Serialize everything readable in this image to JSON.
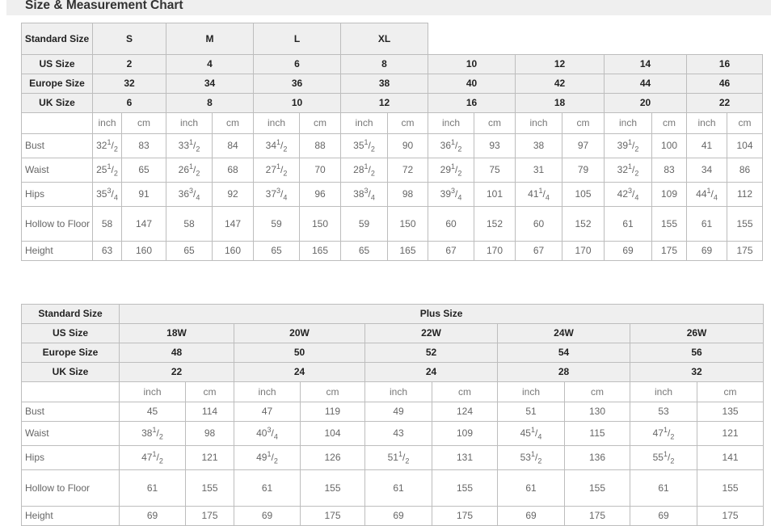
{
  "title": "Size & Measurement Chart",
  "table1": {
    "header_label": "Standard Size",
    "groups": [
      "S",
      "M",
      "L",
      "XL"
    ],
    "rows": [
      {
        "label": "US Size",
        "values": [
          "2",
          "4",
          "6",
          "8",
          "10",
          "12",
          "14",
          "16"
        ]
      },
      {
        "label": "Europe Size",
        "values": [
          "32",
          "34",
          "36",
          "38",
          "40",
          "42",
          "44",
          "46"
        ]
      },
      {
        "label": "UK Size",
        "values": [
          "6",
          "8",
          "10",
          "12",
          "16",
          "18",
          "20",
          "22"
        ]
      }
    ],
    "units": [
      "inch",
      "cm"
    ],
    "measures": [
      {
        "label": "Bust",
        "values": [
          {
            "w": "32",
            "n": "1",
            "d": "2"
          },
          "83",
          {
            "w": "33",
            "n": "1",
            "d": "2"
          },
          "84",
          {
            "w": "34",
            "n": "1",
            "d": "2"
          },
          "88",
          {
            "w": "35",
            "n": "1",
            "d": "2"
          },
          "90",
          {
            "w": "36",
            "n": "1",
            "d": "2"
          },
          "93",
          "38",
          "97",
          {
            "w": "39",
            "n": "1",
            "d": "2"
          },
          "100",
          "41",
          "104"
        ]
      },
      {
        "label": "Waist",
        "values": [
          {
            "w": "25",
            "n": "1",
            "d": "2"
          },
          "65",
          {
            "w": "26",
            "n": "1",
            "d": "2"
          },
          "68",
          {
            "w": "27",
            "n": "1",
            "d": "2"
          },
          "70",
          {
            "w": "28",
            "n": "1",
            "d": "2"
          },
          "72",
          {
            "w": "29",
            "n": "1",
            "d": "2"
          },
          "75",
          "31",
          "79",
          {
            "w": "32",
            "n": "1",
            "d": "2"
          },
          "83",
          "34",
          "86"
        ]
      },
      {
        "label": "Hips",
        "values": [
          {
            "w": "35",
            "n": "3",
            "d": "4"
          },
          "91",
          {
            "w": "36",
            "n": "3",
            "d": "4"
          },
          "92",
          {
            "w": "37",
            "n": "3",
            "d": "4"
          },
          "96",
          {
            "w": "38",
            "n": "3",
            "d": "4"
          },
          "98",
          {
            "w": "39",
            "n": "3",
            "d": "4"
          },
          "101",
          {
            "w": "41",
            "n": "1",
            "d": "4"
          },
          "105",
          {
            "w": "42",
            "n": "3",
            "d": "4"
          },
          "109",
          {
            "w": "44",
            "n": "1",
            "d": "4"
          },
          "112"
        ]
      },
      {
        "label": "Hollow to Floor",
        "values": [
          "58",
          "147",
          "58",
          "147",
          "59",
          "150",
          "59",
          "150",
          "60",
          "152",
          "60",
          "152",
          "61",
          "155",
          "61",
          "155"
        ]
      },
      {
        "label": "Height",
        "values": [
          "63",
          "160",
          "65",
          "160",
          "65",
          "165",
          "65",
          "165",
          "67",
          "170",
          "67",
          "170",
          "69",
          "175",
          "69",
          "175"
        ]
      }
    ]
  },
  "table2": {
    "header_label": "Standard Size",
    "group": "Plus Size",
    "rows": [
      {
        "label": "US Size",
        "values": [
          "18W",
          "20W",
          "22W",
          "24W",
          "26W"
        ]
      },
      {
        "label": "Europe Size",
        "values": [
          "48",
          "50",
          "52",
          "54",
          "56"
        ]
      },
      {
        "label": "UK Size",
        "values": [
          "22",
          "24",
          "24",
          "28",
          "32"
        ]
      }
    ],
    "units": [
      "inch",
      "cm"
    ],
    "measures": [
      {
        "label": "Bust",
        "values": [
          "45",
          "114",
          "47",
          "119",
          "49",
          "124",
          "51",
          "130",
          "53",
          "135"
        ]
      },
      {
        "label": "Waist",
        "values": [
          {
            "w": "38",
            "n": "1",
            "d": "2"
          },
          "98",
          {
            "w": "40",
            "n": "3",
            "d": "4"
          },
          "104",
          "43",
          "109",
          {
            "w": "45",
            "n": "1",
            "d": "4"
          },
          "115",
          {
            "w": "47",
            "n": "1",
            "d": "2"
          },
          "121"
        ]
      },
      {
        "label": "Hips",
        "values": [
          {
            "w": "47",
            "n": "1",
            "d": "2"
          },
          "121",
          {
            "w": "49",
            "n": "1",
            "d": "2"
          },
          "126",
          {
            "w": "51",
            "n": "1",
            "d": "2"
          },
          "131",
          {
            "w": "53",
            "n": "1",
            "d": "2"
          },
          "136",
          {
            "w": "55",
            "n": "1",
            "d": "2"
          },
          "141"
        ]
      },
      {
        "label": "Hollow to Floor",
        "values": [
          "61",
          "155",
          "61",
          "155",
          "61",
          "155",
          "61",
          "155",
          "61",
          "155"
        ]
      },
      {
        "label": "Height",
        "values": [
          "69",
          "175",
          "69",
          "175",
          "69",
          "175",
          "69",
          "175",
          "69",
          "175"
        ]
      }
    ]
  }
}
